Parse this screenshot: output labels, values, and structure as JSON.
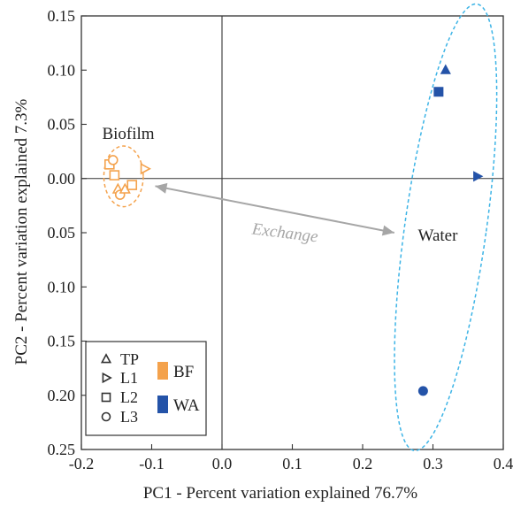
{
  "chart_data": {
    "type": "scatter",
    "xlabel": "PC1 - Percent variation explained 76.7%",
    "ylabel": "PC2 - Percent variation explained 7.3%",
    "xlim": [
      -0.2,
      0.4
    ],
    "ylim": [
      -0.25,
      0.15
    ],
    "x_ticks": [
      -0.2,
      -0.1,
      0.0,
      0.1,
      0.2,
      0.3,
      0.4
    ],
    "x_tick_labels": [
      "-0.2",
      "-0.1",
      "0.0",
      "0.1",
      "0.2",
      "0.3",
      "0.4"
    ],
    "y_ticks": [
      0.15,
      0.1,
      0.05,
      0.0,
      -0.05,
      -0.1,
      -0.15,
      -0.2,
      -0.25
    ],
    "y_tick_labels": [
      "0.15",
      "0.10",
      "0.05",
      "0.00",
      "0.05",
      "0.10",
      "0.15",
      "0.20",
      "0.25"
    ],
    "reference_lines": {
      "x": 0,
      "y": 0
    },
    "series": [
      {
        "name": "BF",
        "color": "#F4A24C",
        "filled": false,
        "points": [
          {
            "x": -0.16,
            "y": 0.013,
            "marker": "square"
          },
          {
            "x": -0.155,
            "y": 0.017,
            "marker": "circle"
          },
          {
            "x": -0.153,
            "y": 0.003,
            "marker": "square"
          },
          {
            "x": -0.148,
            "y": -0.01,
            "marker": "triangle-up"
          },
          {
            "x": -0.145,
            "y": -0.015,
            "marker": "circle"
          },
          {
            "x": -0.138,
            "y": -0.01,
            "marker": "triangle-up"
          },
          {
            "x": -0.128,
            "y": -0.006,
            "marker": "square"
          },
          {
            "x": -0.11,
            "y": 0.009,
            "marker": "triangle-right"
          }
        ]
      },
      {
        "name": "WA",
        "color": "#2453A8",
        "filled": true,
        "points": [
          {
            "x": 0.318,
            "y": 0.1,
            "marker": "triangle-up"
          },
          {
            "x": 0.308,
            "y": 0.08,
            "marker": "square"
          },
          {
            "x": 0.363,
            "y": 0.002,
            "marker": "triangle-right"
          },
          {
            "x": 0.286,
            "y": -0.196,
            "marker": "circle"
          }
        ]
      }
    ],
    "groups": [
      {
        "label": "Biofilm",
        "color": "#F4A24C",
        "center": [
          -0.14,
          0.002
        ],
        "radius_x": 0.028,
        "radius_y": 0.028
      },
      {
        "label": "Water",
        "color": "#3DB4E6",
        "center": [
          0.318,
          -0.045
        ],
        "radius_x": 0.058,
        "radius_y": 0.208,
        "rotation_deg": 8
      }
    ],
    "annotation": {
      "text": "Exchange",
      "from": [
        -0.095,
        -0.007
      ],
      "to": [
        0.245,
        -0.05
      ],
      "color": "#A6A6A6"
    },
    "legend": {
      "placement": "bottom-left",
      "shape_entries": [
        {
          "label": "TP",
          "marker": "triangle-up"
        },
        {
          "label": "L1",
          "marker": "triangle-right"
        },
        {
          "label": "L2",
          "marker": "square"
        },
        {
          "label": "L3",
          "marker": "circle"
        }
      ],
      "color_entries": [
        {
          "label": "BF",
          "color": "#F4A24C"
        },
        {
          "label": "WA",
          "color": "#2453A8"
        }
      ]
    }
  }
}
